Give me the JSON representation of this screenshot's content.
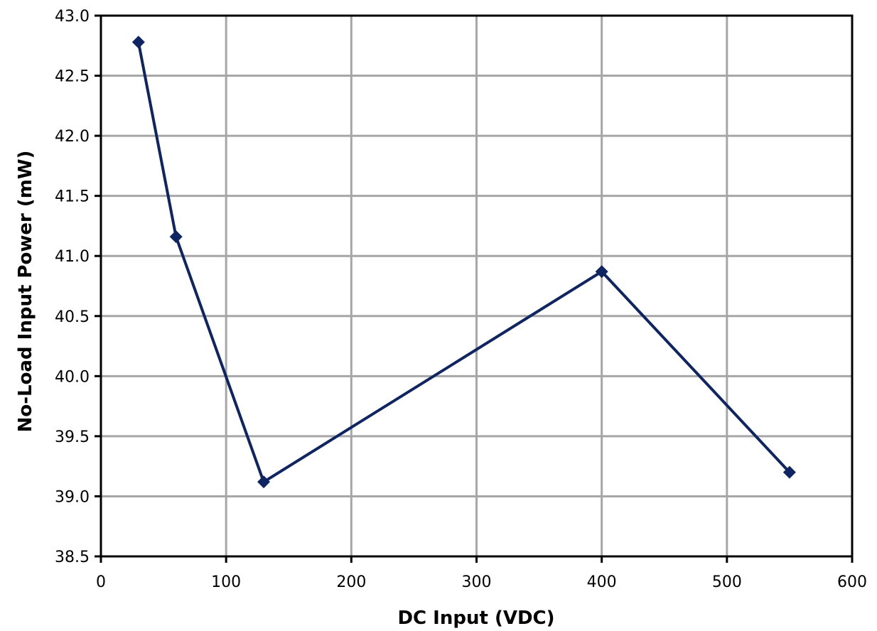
{
  "chart_data": {
    "type": "line",
    "title": "",
    "xlabel": "DC Input (VDC)",
    "ylabel": "No-Load Input Power (mW)",
    "xlim": [
      0,
      600
    ],
    "ylim": [
      38.5,
      43.0
    ],
    "x_ticks": [
      "0",
      "100",
      "200",
      "300",
      "400",
      "500",
      "600"
    ],
    "y_ticks": [
      "38.5",
      "39.0",
      "39.5",
      "40.0",
      "40.5",
      "41.0",
      "41.5",
      "42.0",
      "42.5",
      "43.0"
    ],
    "grid": true,
    "legend": "none",
    "series": [
      {
        "x": [
          30,
          60,
          130,
          400,
          550
        ],
        "y": [
          42.78,
          41.16,
          39.12,
          40.87,
          39.2
        ],
        "color": "#0f2462",
        "marker": "diamond"
      }
    ]
  }
}
